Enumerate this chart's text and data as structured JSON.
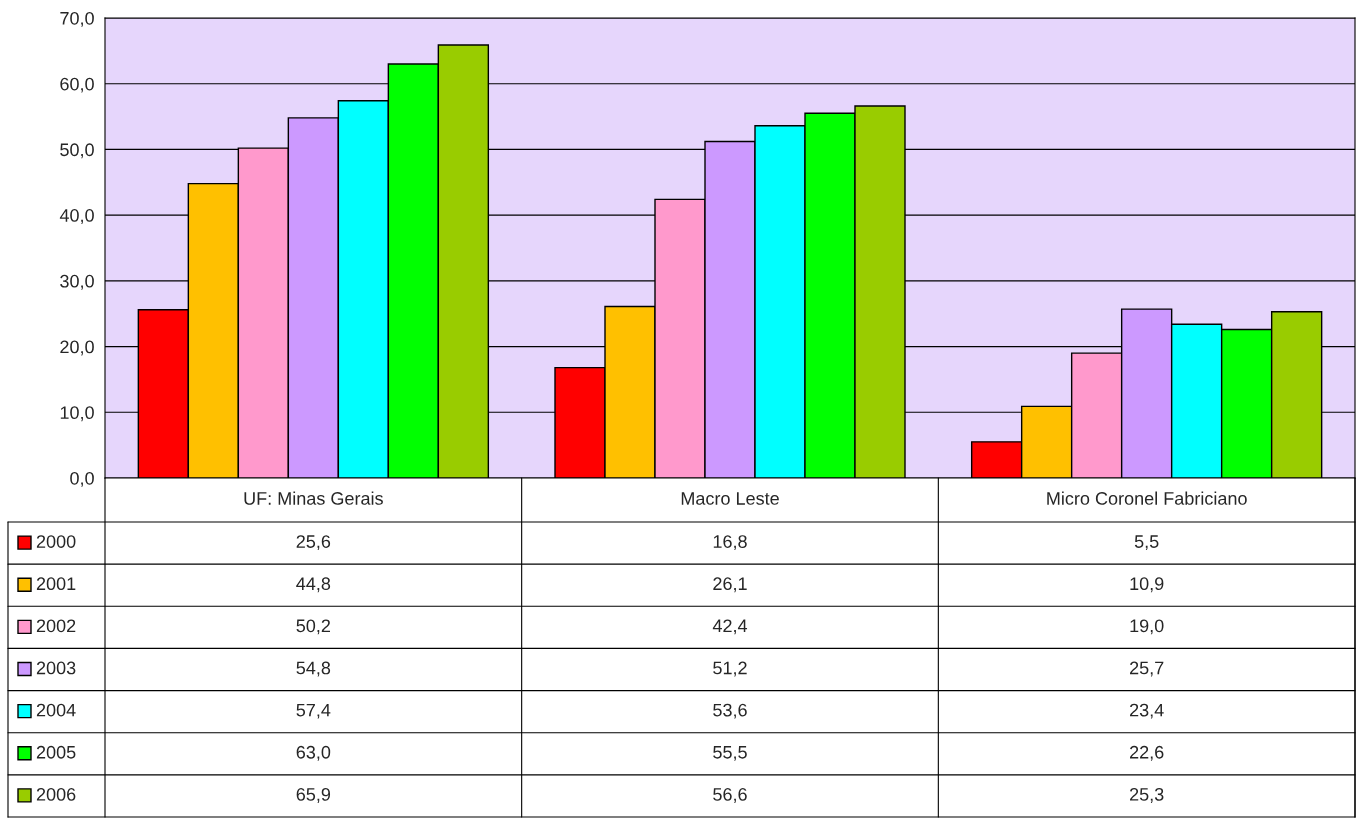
{
  "chart_data": {
    "type": "bar",
    "categories": [
      "UF: Minas Gerais",
      "Macro Leste",
      "Micro Coronel Fabriciano"
    ],
    "series": [
      {
        "name": "2000",
        "color": "#ff0000",
        "values": [
          25.6,
          16.8,
          5.5
        ],
        "value_labels": [
          "25,6",
          "16,8",
          "5,5"
        ]
      },
      {
        "name": "2001",
        "color": "#ffc000",
        "values": [
          44.8,
          26.1,
          10.9
        ],
        "value_labels": [
          "44,8",
          "26,1",
          "10,9"
        ]
      },
      {
        "name": "2002",
        "color": "#ff99cc",
        "values": [
          50.2,
          42.4,
          19.0
        ],
        "value_labels": [
          "50,2",
          "42,4",
          "19,0"
        ]
      },
      {
        "name": "2003",
        "color": "#cc99ff",
        "values": [
          54.8,
          51.2,
          25.7
        ],
        "value_labels": [
          "54,8",
          "51,2",
          "25,7"
        ]
      },
      {
        "name": "2004",
        "color": "#00ffff",
        "values": [
          57.4,
          53.6,
          23.4
        ],
        "value_labels": [
          "57,4",
          "53,6",
          "23,4"
        ]
      },
      {
        "name": "2005",
        "color": "#00ff00",
        "values": [
          63.0,
          55.5,
          22.6
        ],
        "value_labels": [
          "63,0",
          "55,5",
          "22,6"
        ]
      },
      {
        "name": "2006",
        "color": "#99cc00",
        "values": [
          65.9,
          56.6,
          25.3
        ],
        "value_labels": [
          "65,9",
          "56,6",
          "25,3"
        ]
      }
    ],
    "ylim": [
      0,
      70
    ],
    "yticks": [
      {
        "value": 0,
        "label": "0,0"
      },
      {
        "value": 10,
        "label": "10,0"
      },
      {
        "value": 20,
        "label": "20,0"
      },
      {
        "value": 30,
        "label": "30,0"
      },
      {
        "value": 40,
        "label": "40,0"
      },
      {
        "value": 50,
        "label": "50,0"
      },
      {
        "value": 60,
        "label": "60,0"
      },
      {
        "value": 70,
        "label": "70,0"
      }
    ],
    "grid": "y",
    "legend": "bottom left"
  }
}
